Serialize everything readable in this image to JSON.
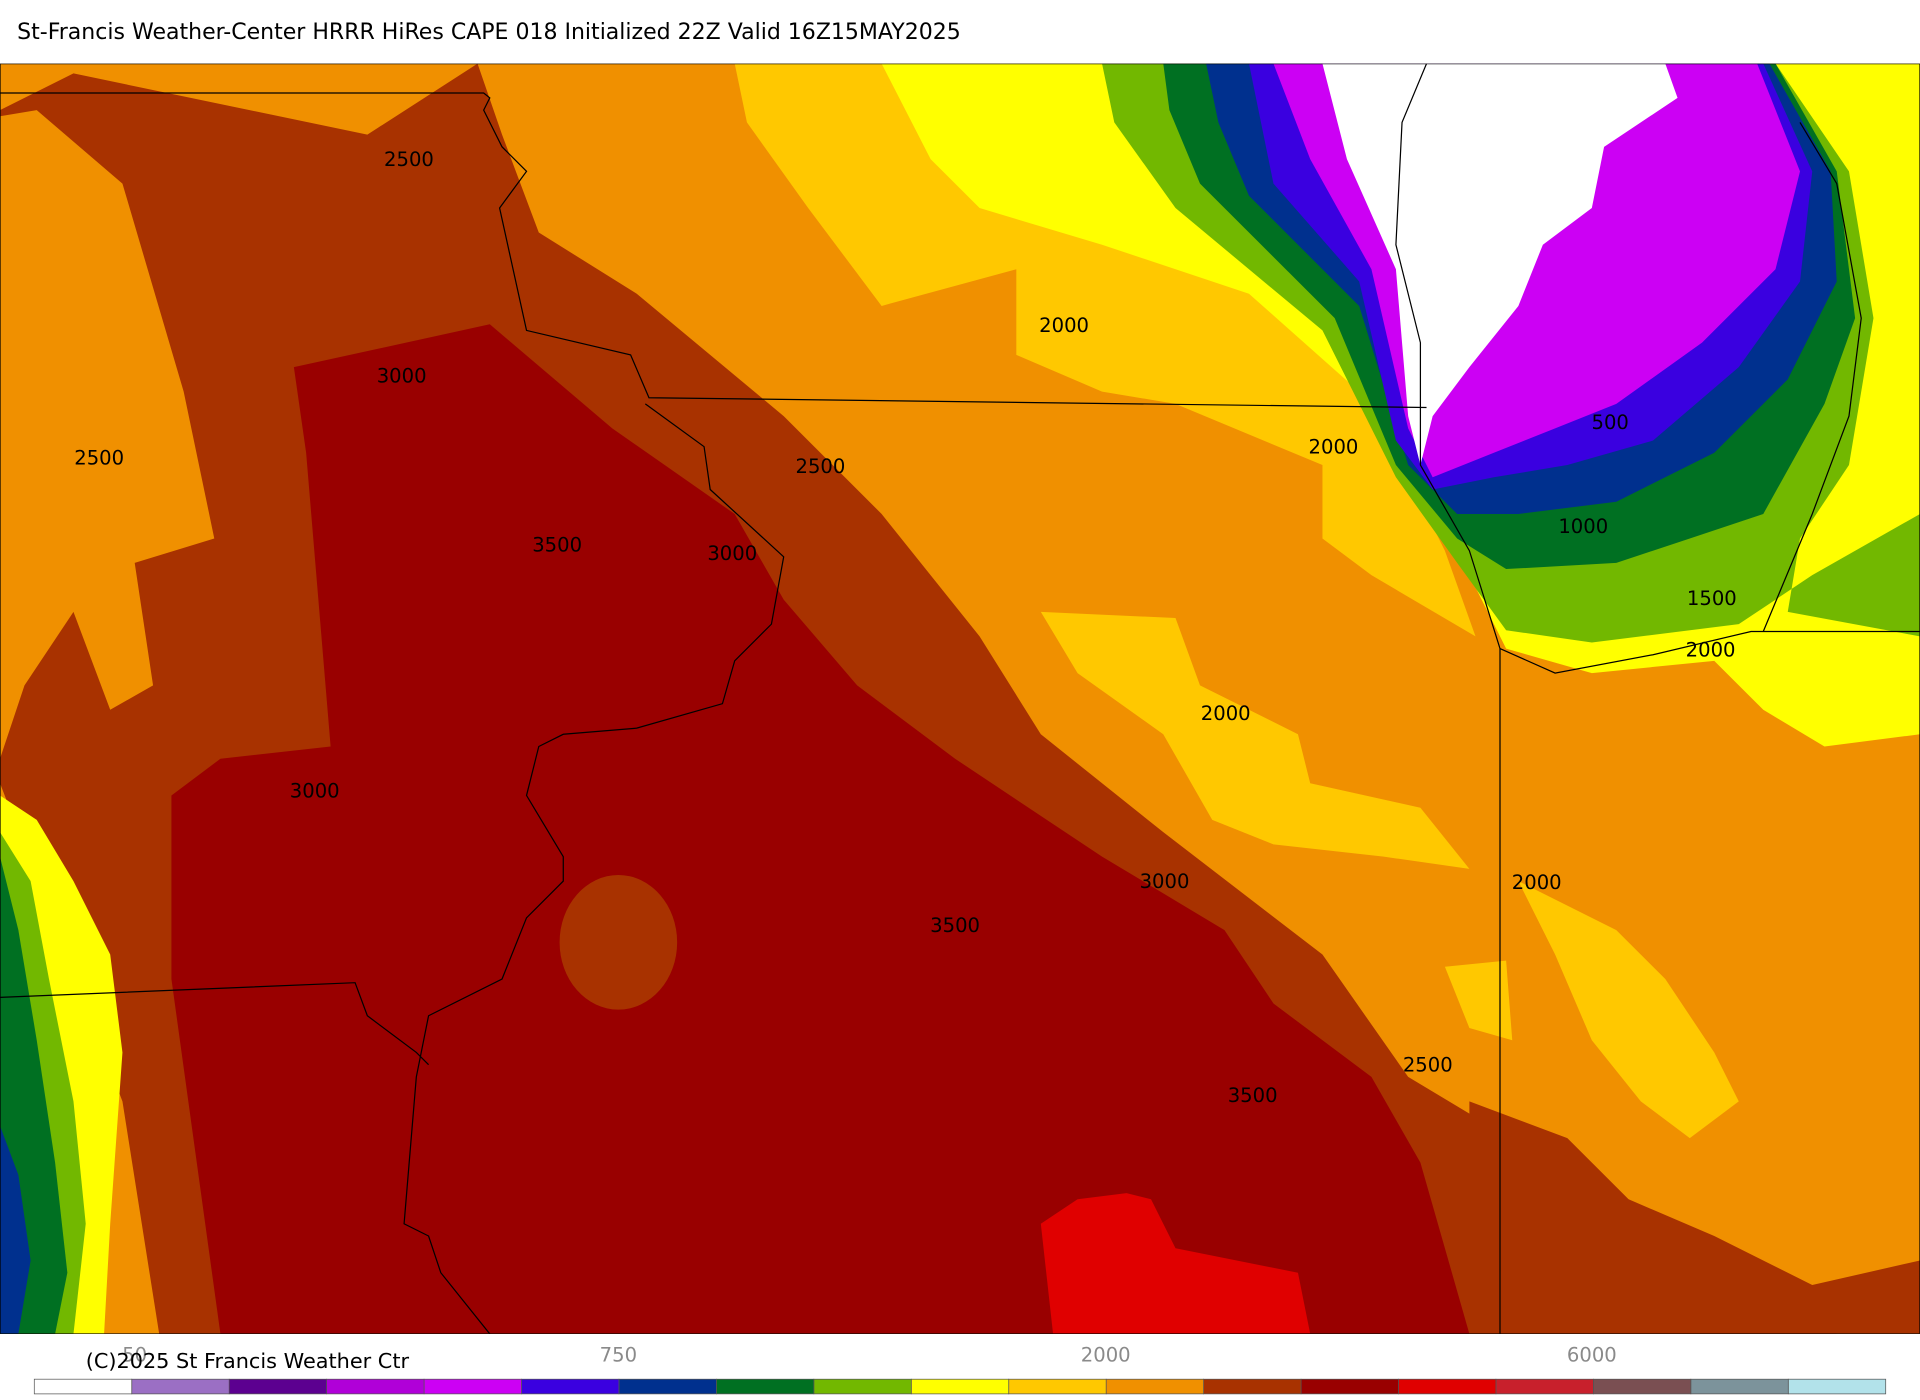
{
  "header": {
    "title": "St-Francis Weather-Center HRRR HiRes CAPE  018 Initialized  22Z Valid 16Z15MAY2025"
  },
  "map": {
    "contour_labels": [
      2500,
      3000,
      2500,
      3500,
      3000,
      2500,
      2000,
      2000,
      500,
      1000,
      1500,
      2000,
      2000,
      3000,
      3000,
      2000,
      3500,
      2500,
      3500
    ]
  },
  "colorbar": {
    "colors": [
      "#ffffff",
      "#9b6fc4",
      "#5c0090",
      "#b000d8",
      "#cc00f4",
      "#3a00e0",
      "#00308e",
      "#007022",
      "#72b800",
      "#ffff00",
      "#ffc800",
      "#f09000",
      "#a83200",
      "#990000",
      "#e00000",
      "#c8202c",
      "#7a4f52",
      "#7c939b",
      "#b2e2ea"
    ],
    "tick_labels": [
      "50",
      "750",
      "2000",
      "6000"
    ]
  },
  "footer": {
    "copyright": "(C)2025 St Francis Weather Ctr"
  }
}
